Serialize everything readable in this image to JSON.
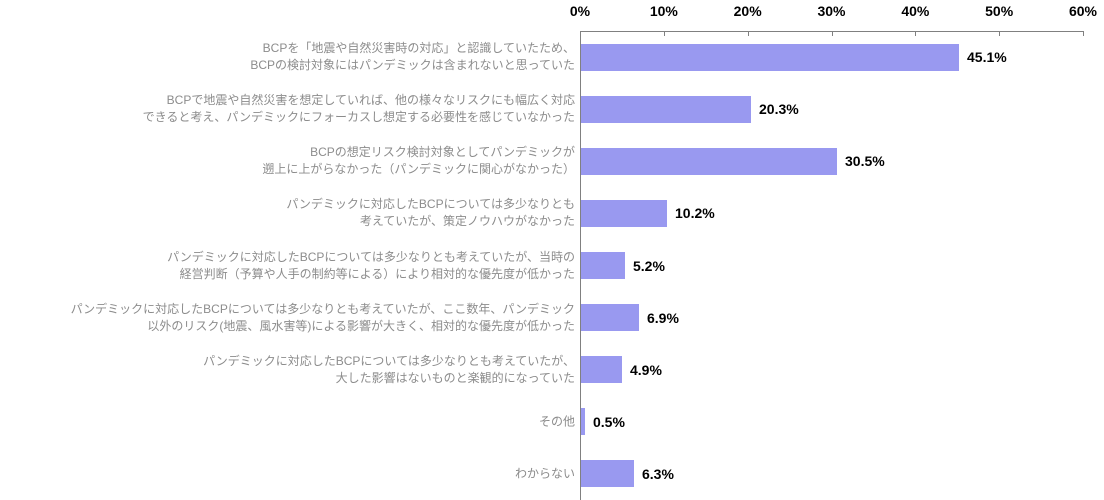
{
  "chart_data": {
    "type": "bar",
    "orientation": "horizontal",
    "title": "",
    "x_axis": {
      "position": "top",
      "min": 0,
      "max": 60,
      "tick_step": 10,
      "tick_labels": [
        "0%",
        "10%",
        "20%",
        "30%",
        "40%",
        "50%",
        "60%"
      ],
      "unit": "%"
    },
    "grid": false,
    "legend": false,
    "categories": [
      [
        "BCPを「地震や自然災害時の対応」と認識していたため、",
        "BCPの検討対象にはパンデミックは含まれないと思っていた"
      ],
      [
        "BCPで地震や自然災害を想定していれば、他の様々なリスクにも幅広く対応",
        "できると考え、パンデミックにフォーカスし想定する必要性を感じていなかった"
      ],
      [
        "BCPの想定リスク検討対象としてパンデミックが",
        "遡上に上がらなかった（パンデミックに関心がなかった）"
      ],
      [
        "パンデミックに対応したBCPについては多少なりとも",
        "考えていたが、策定ノウハウがなかった"
      ],
      [
        "パンデミックに対応したBCPについては多少なりとも考えていたが、当時の",
        "経営判断（予算や人手の制約等による）により相対的な優先度が低かった"
      ],
      [
        "パンデミックに対応したBCPについては多少なりとも考えていたが、ここ数年、パンデミック",
        "以外のリスク(地震、風水害等)による影響が大きく、相対的な優先度が低かった"
      ],
      [
        "パンデミックに対応したBCPについては多少なりとも考えていたが、",
        "大した影響はないものと楽観的になっていた"
      ],
      [
        "その他"
      ],
      [
        "わからない"
      ]
    ],
    "values": [
      45.1,
      20.3,
      30.5,
      10.2,
      5.2,
      6.9,
      4.9,
      0.5,
      6.3
    ],
    "value_labels": [
      "45.1%",
      "20.3%",
      "30.5%",
      "10.2%",
      "5.2%",
      "6.9%",
      "4.9%",
      "0.5%",
      "6.3%"
    ],
    "colors": {
      "bar_fill": "#9999F0",
      "axis_line": "#808080",
      "category_label": "#8C8C8C",
      "value_label": "#000000",
      "tick_label": "#000000"
    }
  }
}
